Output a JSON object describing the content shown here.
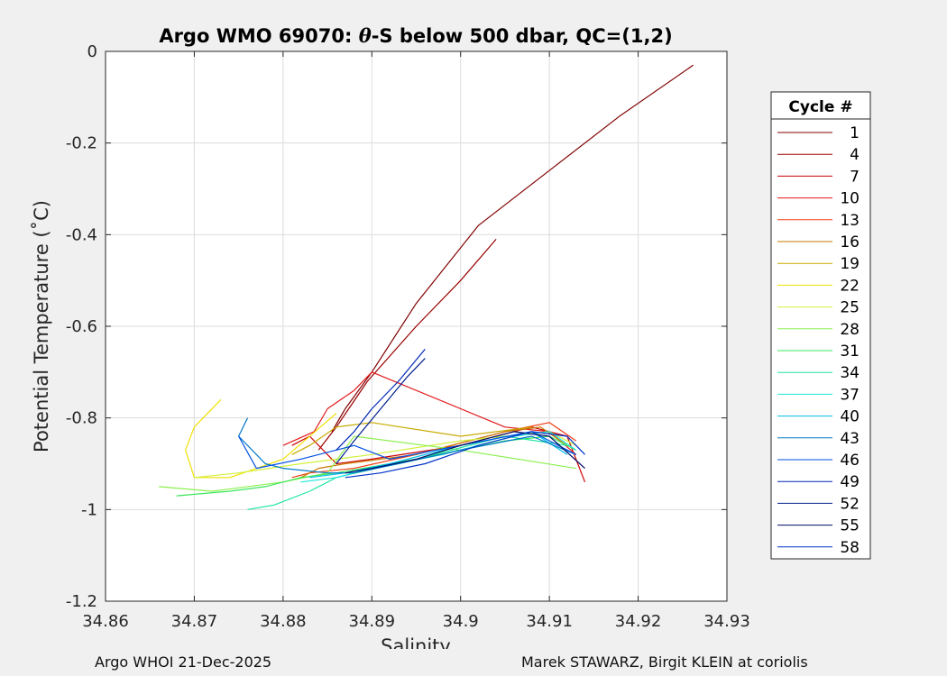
{
  "chart_data": {
    "type": "line",
    "title_prefix": "Argo WMO 69070: ",
    "title_symbol": "θ",
    "title_suffix": "-S below 500 dbar,  QC=(1,2)",
    "xlabel": "Salinity",
    "ylabel": "Potential Temperature (˚C)",
    "xlim": [
      34.86,
      34.93
    ],
    "ylim": [
      -1.2,
      0
    ],
    "xticks": [
      "34.86",
      "34.87",
      "34.88",
      "34.89",
      "34.9",
      "34.91",
      "34.92",
      "34.93"
    ],
    "yticks": [
      "0",
      "-0.2",
      "-0.4",
      "-0.6",
      "-0.8",
      "-1",
      "-1.2"
    ],
    "grid": true,
    "legend": {
      "title": "Cycle #",
      "position": "outside-right",
      "entries": [
        {
          "label": "1",
          "color": "#800000"
        },
        {
          "label": "4",
          "color": "#990000"
        },
        {
          "label": "7",
          "color": "#cc0000"
        },
        {
          "label": "10",
          "color": "#e31a1c"
        },
        {
          "label": "13",
          "color": "#f03c14"
        },
        {
          "label": "16",
          "color": "#c87800"
        },
        {
          "label": "19",
          "color": "#c8aa00"
        },
        {
          "label": "22",
          "color": "#f0e000"
        },
        {
          "label": "25",
          "color": "#d2f03c"
        },
        {
          "label": "28",
          "color": "#8cf050"
        },
        {
          "label": "31",
          "color": "#3ce65a"
        },
        {
          "label": "34",
          "color": "#1ee6a0"
        },
        {
          "label": "37",
          "color": "#1ee6dc"
        },
        {
          "label": "40",
          "color": "#00beeb"
        },
        {
          "label": "43",
          "color": "#0078c8"
        },
        {
          "label": "46",
          "color": "#0050e6"
        },
        {
          "label": "49",
          "color": "#0028b4"
        },
        {
          "label": "52",
          "color": "#001e8c"
        },
        {
          "label": "55",
          "color": "#000a64"
        },
        {
          "label": "58",
          "color": "#0032c8"
        }
      ]
    },
    "series": [
      {
        "color": "#800000",
        "x": [
          34.8855,
          34.887,
          34.89,
          34.895,
          34.902,
          34.91,
          34.918,
          34.9262
        ],
        "y": [
          -0.83,
          -0.78,
          -0.7,
          -0.55,
          -0.38,
          -0.26,
          -0.14,
          -0.03
        ]
      },
      {
        "color": "#990000",
        "x": [
          34.884,
          34.886,
          34.8895,
          34.895,
          34.9,
          34.904
        ],
        "y": [
          -0.87,
          -0.82,
          -0.72,
          -0.6,
          -0.5,
          -0.41
        ]
      },
      {
        "color": "#cc0000",
        "x": [
          34.881,
          34.883,
          34.886,
          34.89,
          34.9,
          34.908,
          34.912,
          34.914
        ],
        "y": [
          -0.86,
          -0.84,
          -0.9,
          -0.89,
          -0.86,
          -0.82,
          -0.84,
          -0.94
        ]
      },
      {
        "color": "#e31a1c",
        "x": [
          34.88,
          34.8835,
          34.885,
          34.888,
          34.89,
          34.905,
          34.91,
          34.913
        ],
        "y": [
          -0.86,
          -0.83,
          -0.78,
          -0.74,
          -0.7,
          -0.82,
          -0.83,
          -0.88
        ]
      },
      {
        "color": "#f03c14",
        "x": [
          34.881,
          34.883,
          34.888,
          34.895,
          34.905,
          34.91,
          34.913
        ],
        "y": [
          -0.93,
          -0.92,
          -0.91,
          -0.88,
          -0.83,
          -0.81,
          -0.85
        ]
      },
      {
        "color": "#c87800",
        "x": [
          34.882,
          34.884,
          34.887,
          34.895,
          34.905,
          34.909,
          34.912
        ],
        "y": [
          -0.93,
          -0.91,
          -0.9,
          -0.88,
          -0.83,
          -0.82,
          -0.86
        ]
      },
      {
        "color": "#c8aa00",
        "x": [
          34.881,
          34.883,
          34.886,
          34.89,
          34.9,
          34.908
        ],
        "y": [
          -0.88,
          -0.86,
          -0.82,
          -0.81,
          -0.84,
          -0.82
        ]
      },
      {
        "color": "#f0e000",
        "x": [
          34.873,
          34.87,
          34.869,
          34.87,
          34.874,
          34.88,
          34.886
        ],
        "y": [
          -0.76,
          -0.82,
          -0.87,
          -0.93,
          -0.93,
          -0.89,
          -0.79
        ]
      },
      {
        "color": "#d2f03c",
        "x": [
          34.87,
          34.875,
          34.882,
          34.89,
          34.9,
          34.91,
          34.913
        ],
        "y": [
          -0.93,
          -0.92,
          -0.9,
          -0.88,
          -0.85,
          -0.83,
          -0.86
        ]
      },
      {
        "color": "#8cf050",
        "x": [
          34.866,
          34.872,
          34.88,
          34.885,
          34.888,
          34.9,
          34.913
        ],
        "y": [
          -0.95,
          -0.96,
          -0.94,
          -0.92,
          -0.84,
          -0.87,
          -0.91
        ]
      },
      {
        "color": "#3ce65a",
        "x": [
          34.868,
          34.874,
          34.878,
          34.882,
          34.886,
          34.895,
          34.905,
          34.91,
          34.913
        ],
        "y": [
          -0.97,
          -0.96,
          -0.95,
          -0.93,
          -0.92,
          -0.89,
          -0.85,
          -0.84,
          -0.87
        ]
      },
      {
        "color": "#1ee6a0",
        "x": [
          34.876,
          34.879,
          34.883,
          34.886,
          34.895,
          34.905,
          34.912
        ],
        "y": [
          -1.0,
          -0.99,
          -0.96,
          -0.93,
          -0.89,
          -0.84,
          -0.86
        ]
      },
      {
        "color": "#1ee6dc",
        "x": [
          34.882,
          34.886,
          34.89,
          34.898,
          34.906,
          34.91,
          34.913
        ],
        "y": [
          -0.94,
          -0.93,
          -0.91,
          -0.88,
          -0.84,
          -0.83,
          -0.87
        ]
      },
      {
        "color": "#00beeb",
        "x": [
          34.883,
          34.887,
          34.892,
          34.9,
          34.908,
          34.912
        ],
        "y": [
          -0.93,
          -0.92,
          -0.9,
          -0.86,
          -0.83,
          -0.88
        ]
      },
      {
        "color": "#0078c8",
        "x": [
          34.876,
          34.875,
          34.878,
          34.88,
          34.885,
          34.888,
          34.893,
          34.9,
          34.908,
          34.913
        ],
        "y": [
          -0.8,
          -0.84,
          -0.9,
          -0.91,
          -0.92,
          -0.92,
          -0.9,
          -0.87,
          -0.84,
          -0.88
        ]
      },
      {
        "color": "#0050e6",
        "x": [
          34.875,
          34.877,
          34.882,
          34.886,
          34.888,
          34.892,
          34.9,
          34.908,
          34.913
        ],
        "y": [
          -0.84,
          -0.91,
          -0.89,
          -0.87,
          -0.86,
          -0.89,
          -0.86,
          -0.83,
          -0.88
        ]
      },
      {
        "color": "#0028b4",
        "x": [
          34.886,
          34.888,
          34.89,
          34.893,
          34.896
        ],
        "y": [
          -0.87,
          -0.83,
          -0.78,
          -0.72,
          -0.65
        ]
      },
      {
        "color": "#001e8c",
        "x": [
          34.886,
          34.888,
          34.891,
          34.894,
          34.896
        ],
        "y": [
          -0.9,
          -0.85,
          -0.78,
          -0.71,
          -0.67
        ]
      },
      {
        "color": "#000a64",
        "x": [
          34.887,
          34.89,
          34.895,
          34.9,
          34.906,
          34.91,
          34.914
        ],
        "y": [
          -0.92,
          -0.91,
          -0.89,
          -0.86,
          -0.83,
          -0.84,
          -0.91
        ]
      },
      {
        "color": "#0032c8",
        "x": [
          34.887,
          34.891,
          34.896,
          34.902,
          34.908,
          34.912,
          34.914
        ],
        "y": [
          -0.93,
          -0.92,
          -0.9,
          -0.86,
          -0.83,
          -0.84,
          -0.88
        ]
      }
    ]
  },
  "footer": {
    "left": "Argo WHOI 21-Dec-2025",
    "right": "Marek STAWARZ, Birgit KLEIN at coriolis"
  }
}
